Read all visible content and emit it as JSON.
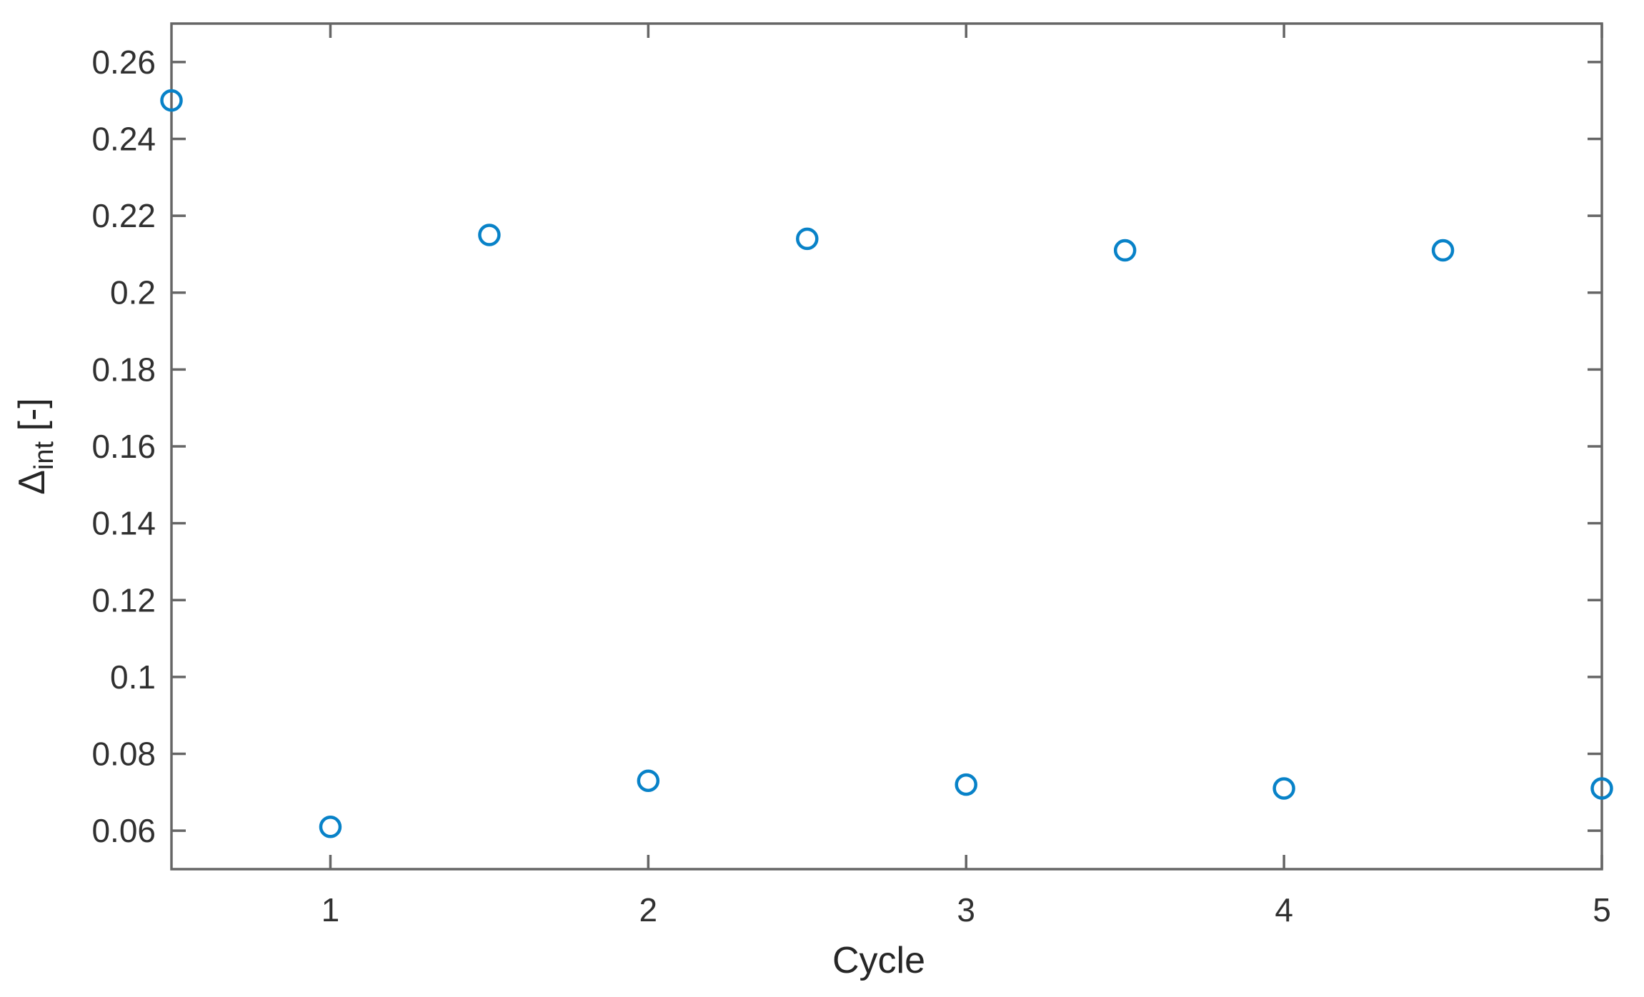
{
  "figure": {
    "background": "#ffffff",
    "axis_color": "#666666",
    "tick_label_color": "#303030",
    "axis_label_color": "#262626",
    "marker_color": "#0882c8",
    "marker_style": "open-circle"
  },
  "chart_data": {
    "type": "scatter",
    "title": "",
    "xlabel": "Cycle",
    "ylabel": "Δ_int [-]",
    "ylabel_parts": {
      "symbol": "Δ",
      "subscript": "int",
      "suffix": " [-]"
    },
    "xlim": [
      0.5,
      5
    ],
    "ylim": [
      0.05,
      0.27
    ],
    "x_ticks": [
      1,
      2,
      3,
      4,
      5
    ],
    "x_tick_labels": [
      "1",
      "2",
      "3",
      "4",
      "5"
    ],
    "y_ticks": [
      0.06,
      0.08,
      0.1,
      0.12,
      0.14,
      0.16,
      0.18,
      0.2,
      0.22,
      0.24,
      0.26
    ],
    "y_tick_labels": [
      "0.06",
      "0.08",
      "0.1",
      "0.12",
      "0.14",
      "0.16",
      "0.18",
      "0.2",
      "0.22",
      "0.24",
      "0.26"
    ],
    "grid": false,
    "box": true,
    "legend": null,
    "series": [
      {
        "name": "Delta_int",
        "marker": "circle",
        "x": [
          0.5,
          1,
          1.5,
          2,
          2.5,
          3,
          3.5,
          4,
          4.5,
          5
        ],
        "y": [
          0.25,
          0.061,
          0.215,
          0.073,
          0.214,
          0.072,
          0.211,
          0.071,
          0.211,
          0.071
        ]
      }
    ]
  }
}
